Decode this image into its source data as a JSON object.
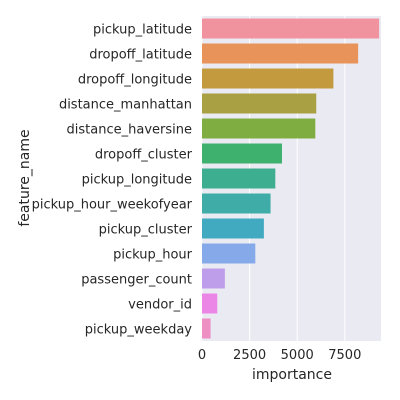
{
  "chart_data": {
    "type": "bar",
    "orientation": "horizontal",
    "title": "",
    "xlabel": "importance",
    "ylabel": "feature_name",
    "xlim": [
      0,
      9400
    ],
    "x_ticks": [
      0,
      2500,
      5000,
      7500
    ],
    "x_tick_labels": [
      "0",
      "2500",
      "5000",
      "7500"
    ],
    "grid": true,
    "plot_background": "#EAEAF2",
    "grid_color": "#FFFFFF",
    "categories": [
      "pickup_latitude",
      "dropoff_latitude",
      "dropoff_longitude",
      "distance_manhattan",
      "distance_haversine",
      "dropoff_cluster",
      "pickup_longitude",
      "pickup_hour_weekofyear",
      "pickup_cluster",
      "pickup_hour",
      "passenger_count",
      "vendor_id",
      "pickup_weekday"
    ],
    "values": [
      9300,
      8200,
      6900,
      6000,
      5950,
      4200,
      3850,
      3600,
      3250,
      2800,
      1200,
      800,
      450
    ],
    "colors": [
      "#F0939F",
      "#E8935A",
      "#C39A3E",
      "#A8A042",
      "#7FAD42",
      "#3EB16E",
      "#3EAE91",
      "#3FACA8",
      "#42AAC0",
      "#86A9EA",
      "#BE9DEB",
      "#EB85E6",
      "#EE8FC4"
    ]
  }
}
